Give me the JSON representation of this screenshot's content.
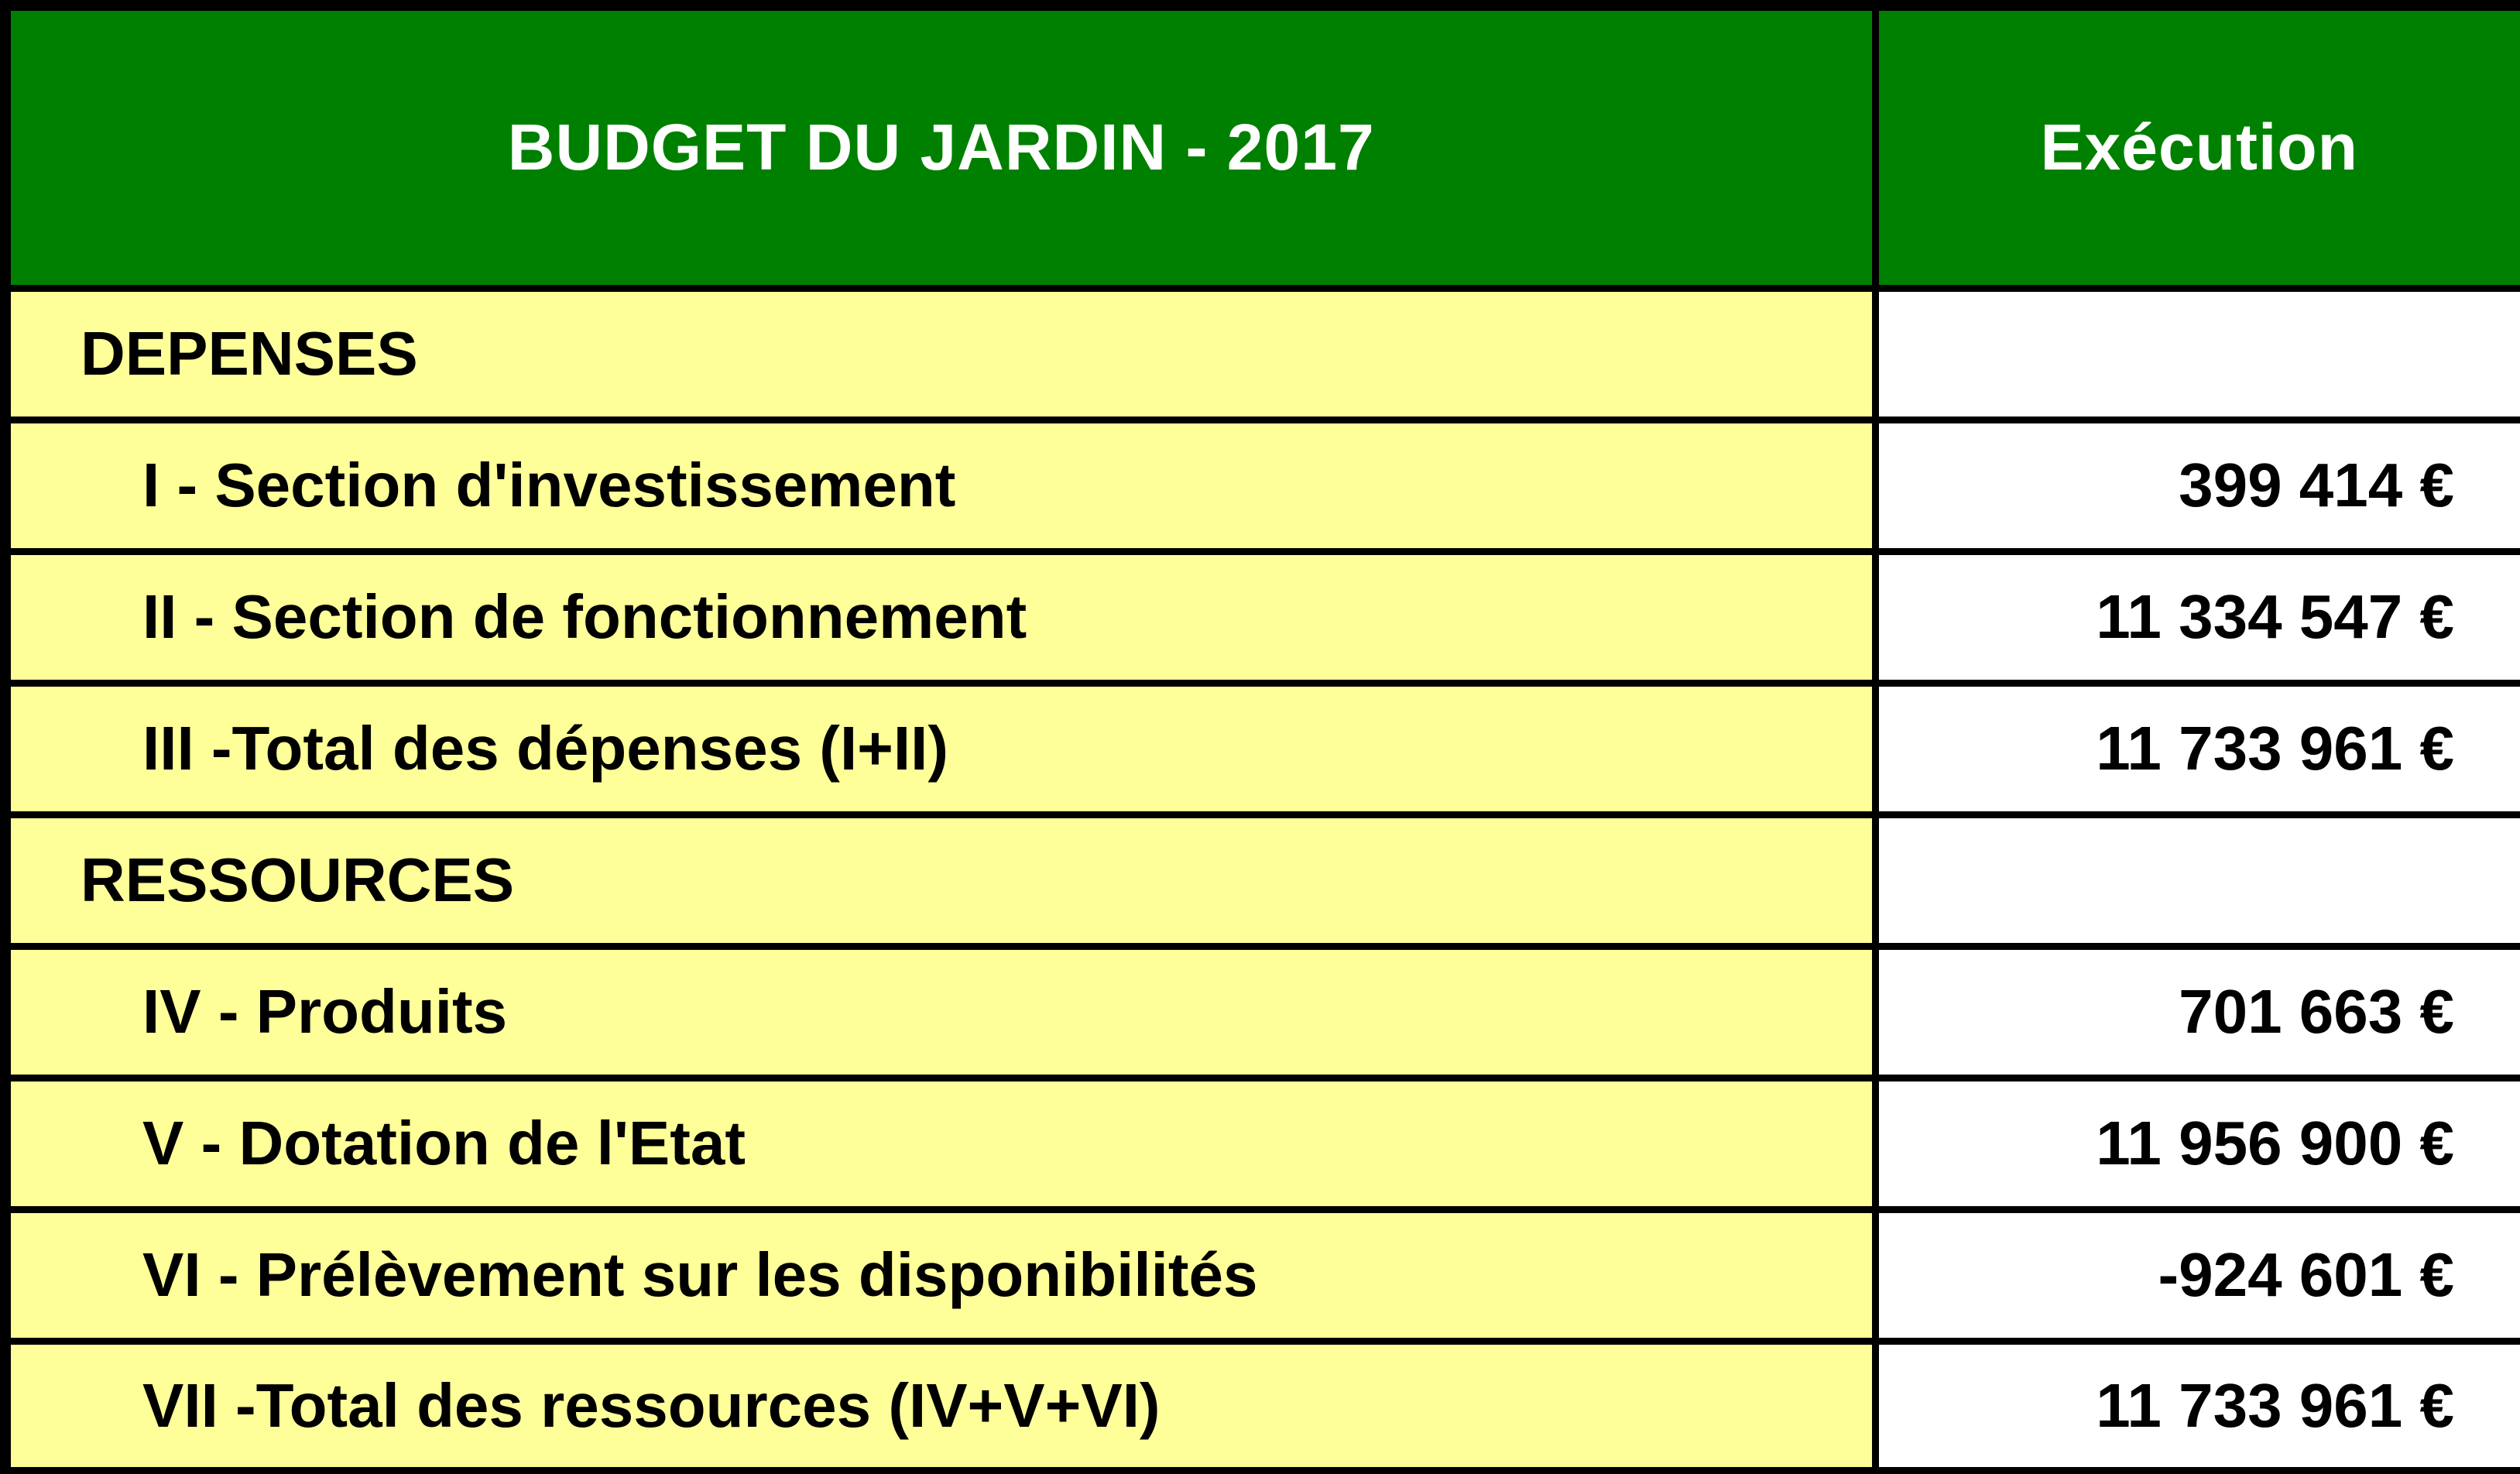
{
  "colors": {
    "header_bg": "#008000",
    "header_text": "#ffffff",
    "label_bg": "#ffff99",
    "value_bg": "#ffffff",
    "border": "#000000",
    "body_text": "#000000"
  },
  "table": {
    "header": {
      "title": "BUDGET DU JARDIN - 2017",
      "execution_label": "Exécution"
    },
    "rows": [
      {
        "label": "DEPENSES",
        "value": "",
        "type": "section"
      },
      {
        "label": "I - Section d'investissement",
        "value": "399 414 €",
        "type": "item"
      },
      {
        "label": "II - Section de fonctionnement",
        "value": "11 334 547 €",
        "type": "item"
      },
      {
        "label": "III -Total des dépenses (I+II)",
        "value": "11 733 961 €",
        "type": "item"
      },
      {
        "label": "RESSOURCES",
        "value": "",
        "type": "section"
      },
      {
        "label": "IV - Produits",
        "value": "701 663 €",
        "type": "item"
      },
      {
        "label": "V - Dotation de l'Etat",
        "value": "11 956 900 €",
        "type": "item"
      },
      {
        "label": "VI - Prélèvement sur les disponibilités",
        "value": "-924 601 €",
        "type": "item"
      },
      {
        "label": "VII -Total des ressources (IV+V+VI)",
        "value": "11 733 961 €",
        "type": "item"
      }
    ]
  }
}
